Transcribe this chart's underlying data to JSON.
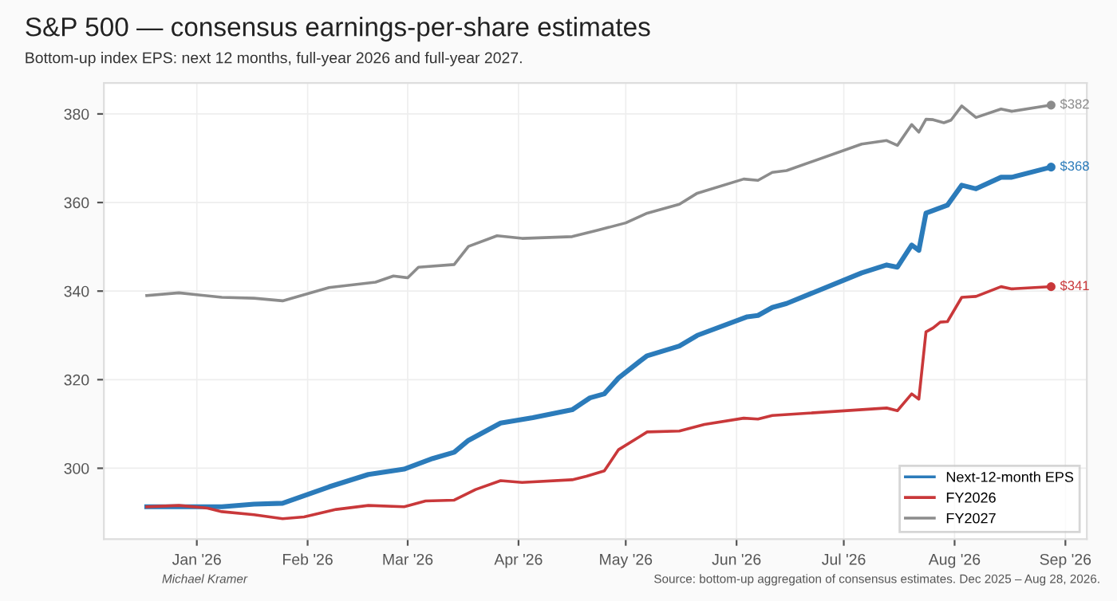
{
  "chart_data": {
    "type": "line",
    "title": "S&P 500 — consensus earnings-per-share estimates",
    "subtitle": "Bottom-up index EPS: next 12 months, full-year 2026 and full-year 2027.",
    "series": [
      {
        "name": "Next-12-month EPS",
        "color": "#2b7bba",
        "x": [
          "2025-12-18",
          "2026-01-01",
          "2026-01-08",
          "2026-01-17",
          "2026-01-25",
          "2026-02-07",
          "2026-02-18",
          "2026-02-28",
          "2026-03-08",
          "2026-03-14",
          "2026-03-18",
          "2026-03-27",
          "2026-04-05",
          "2026-04-16",
          "2026-04-21",
          "2026-04-25",
          "2026-04-29",
          "2026-05-05",
          "2026-05-07",
          "2026-05-16",
          "2026-05-21",
          "2026-06-04",
          "2026-06-07",
          "2026-06-11",
          "2026-06-15",
          "2026-07-06",
          "2026-07-13",
          "2026-07-16",
          "2026-07-20",
          "2026-07-22",
          "2026-07-24",
          "2026-07-30",
          "2026-08-03",
          "2026-08-07",
          "2026-08-14",
          "2026-08-17",
          "2026-08-28"
        ],
        "values": [
          291.3,
          291.3,
          291.3,
          291.9,
          292.1,
          295.8,
          298.6,
          299.8,
          302.2,
          303.6,
          306.3,
          310.2,
          311.4,
          313.2,
          315.9,
          316.8,
          320.4,
          324.2,
          325.4,
          327.6,
          330.0,
          334.2,
          334.5,
          336.3,
          337.2,
          344.1,
          345.9,
          345.4,
          350.4,
          349.2,
          357.6,
          359.4,
          363.9,
          363.1,
          365.7,
          365.7,
          368
        ]
      },
      {
        "name": "FY2026",
        "color": "#c9383a",
        "x": [
          "2025-12-18",
          "2025-12-27",
          "2026-01-04",
          "2026-01-08",
          "2026-01-17",
          "2026-01-25",
          "2026-01-31",
          "2026-02-09",
          "2026-02-18",
          "2026-02-28",
          "2026-03-06",
          "2026-03-14",
          "2026-03-20",
          "2026-03-27",
          "2026-04-02",
          "2026-04-16",
          "2026-04-20",
          "2026-04-25",
          "2026-04-29",
          "2026-05-05",
          "2026-05-07",
          "2026-05-16",
          "2026-05-23",
          "2026-06-03",
          "2026-06-07",
          "2026-06-11",
          "2026-07-13",
          "2026-07-16",
          "2026-07-20",
          "2026-07-22",
          "2026-07-24",
          "2026-07-26",
          "2026-07-28",
          "2026-07-30",
          "2026-08-03",
          "2026-08-07",
          "2026-08-14",
          "2026-08-17",
          "2026-08-28"
        ],
        "values": [
          291.3,
          291.6,
          291.0,
          290.2,
          289.5,
          288.6,
          289.0,
          290.7,
          291.6,
          291.3,
          292.6,
          292.8,
          295.2,
          297.2,
          296.8,
          297.4,
          298.2,
          299.4,
          304.2,
          307.2,
          308.2,
          308.4,
          309.9,
          311.3,
          311.1,
          311.9,
          313.6,
          313.0,
          316.8,
          315.6,
          330.8,
          331.7,
          333.0,
          333.1,
          338.6,
          338.8,
          341.0,
          340.5,
          341
        ]
      },
      {
        "name": "FY2027",
        "color": "#8c8c8c",
        "x": [
          "2025-12-18",
          "2025-12-27",
          "2026-01-08",
          "2026-01-17",
          "2026-01-25",
          "2026-02-07",
          "2026-02-20",
          "2026-02-25",
          "2026-03-01",
          "2026-03-04",
          "2026-03-14",
          "2026-03-18",
          "2026-03-26",
          "2026-04-02",
          "2026-04-16",
          "2026-04-23",
          "2026-05-01",
          "2026-05-07",
          "2026-05-16",
          "2026-05-21",
          "2026-06-03",
          "2026-06-07",
          "2026-06-11",
          "2026-06-15",
          "2026-07-06",
          "2026-07-13",
          "2026-07-16",
          "2026-07-20",
          "2026-07-22",
          "2026-07-24",
          "2026-07-26",
          "2026-07-29",
          "2026-07-31",
          "2026-08-03",
          "2026-08-07",
          "2026-08-14",
          "2026-08-17",
          "2026-08-28"
        ],
        "values": [
          339.0,
          339.6,
          338.6,
          338.4,
          337.8,
          340.8,
          342.0,
          343.4,
          343.0,
          345.4,
          346.0,
          350.1,
          352.5,
          351.9,
          352.3,
          353.7,
          355.4,
          357.6,
          359.6,
          362.1,
          365.3,
          365.0,
          366.8,
          367.2,
          373.2,
          374.0,
          372.9,
          377.6,
          375.9,
          378.8,
          378.7,
          378.0,
          378.6,
          381.8,
          379.2,
          381.1,
          380.6,
          382
        ]
      }
    ],
    "xlim": [
      "2025-12-06",
      "2026-09-07"
    ],
    "xticks": [
      {
        "value": "2026-01-01",
        "label": "Jan '26"
      },
      {
        "value": "2026-02-01",
        "label": "Feb '26"
      },
      {
        "value": "2026-03-01",
        "label": "Mar '26"
      },
      {
        "value": "2026-04-01",
        "label": "Apr '26"
      },
      {
        "value": "2026-05-01",
        "label": "May '26"
      },
      {
        "value": "2026-06-01",
        "label": "Jun '26"
      },
      {
        "value": "2026-07-01",
        "label": "Jul '26"
      },
      {
        "value": "2026-08-01",
        "label": "Aug '26"
      },
      {
        "value": "2026-09-01",
        "label": "Sep '26"
      }
    ],
    "ylim": [
      284,
      387
    ],
    "yticks": [
      300,
      320,
      340,
      360,
      380
    ],
    "grid": true,
    "legend": "bottom right",
    "line_style": "solid",
    "annotations": [
      {
        "text": "$368",
        "x": "2026-08-28",
        "y": 368
      },
      {
        "text": "$341",
        "x": "2026-08-28",
        "y": 341
      },
      {
        "text": "$382",
        "x": "2026-08-28",
        "y": 382
      },
      "Michael Kramer",
      "Source: bottom-up aggregation of consensus estimates. Dec 2025 – Aug 28, 2026."
    ]
  }
}
